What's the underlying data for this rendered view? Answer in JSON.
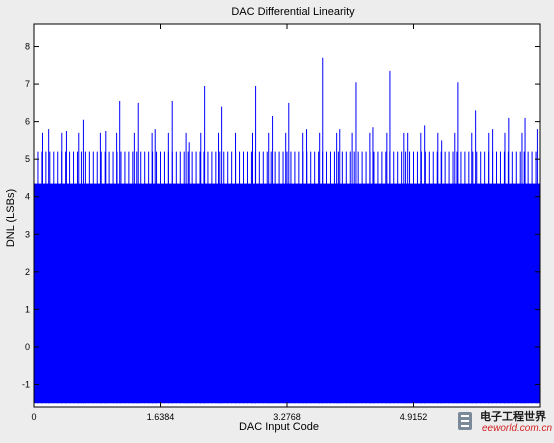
{
  "chart_data": {
    "type": "bar",
    "title": "DAC Differential Linearity",
    "xlabel": "DAC Input Code",
    "ylabel": "DNL (LSBs)",
    "xlim": [
      0,
      65536
    ],
    "ylim": [
      -1.6,
      8.6
    ],
    "x_ticks": [
      {
        "value": 0,
        "label": "0"
      },
      {
        "value": 16384,
        "label": "1.6384"
      },
      {
        "value": 32768,
        "label": "3.2768"
      },
      {
        "value": 49152,
        "label": "4.9152"
      }
    ],
    "y_ticks": [
      {
        "value": -1,
        "label": "-1"
      },
      {
        "value": 0,
        "label": "0"
      },
      {
        "value": 1,
        "label": "1"
      },
      {
        "value": 2,
        "label": "2"
      },
      {
        "value": 3,
        "label": "3"
      },
      {
        "value": 4,
        "label": "4"
      },
      {
        "value": 5,
        "label": "5"
      },
      {
        "value": 6,
        "label": "6"
      },
      {
        "value": 7,
        "label": "7"
      },
      {
        "value": 8,
        "label": "8"
      }
    ],
    "baseline": -1.5,
    "solid_level": 4.35,
    "dense_level": 5.2,
    "dense_spike_spacing": 512,
    "series": [
      {
        "name": "",
        "color": "#0000ff",
        "spikes": [
          {
            "x": 1100,
            "y": 5.7
          },
          {
            "x": 1900,
            "y": 5.8
          },
          {
            "x": 3600,
            "y": 5.7
          },
          {
            "x": 4200,
            "y": 5.75
          },
          {
            "x": 5800,
            "y": 5.7
          },
          {
            "x": 6400,
            "y": 6.05
          },
          {
            "x": 8600,
            "y": 5.7
          },
          {
            "x": 9300,
            "y": 5.75
          },
          {
            "x": 10700,
            "y": 5.7
          },
          {
            "x": 11100,
            "y": 6.55
          },
          {
            "x": 13000,
            "y": 5.7
          },
          {
            "x": 13500,
            "y": 6.5
          },
          {
            "x": 15300,
            "y": 5.7
          },
          {
            "x": 15700,
            "y": 5.8
          },
          {
            "x": 17400,
            "y": 5.7
          },
          {
            "x": 17900,
            "y": 6.55
          },
          {
            "x": 19700,
            "y": 5.7
          },
          {
            "x": 20100,
            "y": 5.45
          },
          {
            "x": 21600,
            "y": 5.7
          },
          {
            "x": 22100,
            "y": 6.95
          },
          {
            "x": 23900,
            "y": 5.7
          },
          {
            "x": 24300,
            "y": 6.4
          },
          {
            "x": 26100,
            "y": 5.7
          },
          {
            "x": 28300,
            "y": 5.7
          },
          {
            "x": 28700,
            "y": 6.95
          },
          {
            "x": 30400,
            "y": 5.7
          },
          {
            "x": 30900,
            "y": 6.15
          },
          {
            "x": 32600,
            "y": 5.7
          },
          {
            "x": 33000,
            "y": 6.5
          },
          {
            "x": 34800,
            "y": 5.7
          },
          {
            "x": 35300,
            "y": 5.8
          },
          {
            "x": 37000,
            "y": 5.7
          },
          {
            "x": 37400,
            "y": 7.7
          },
          {
            "x": 39200,
            "y": 5.7
          },
          {
            "x": 39600,
            "y": 5.8
          },
          {
            "x": 41200,
            "y": 5.7
          },
          {
            "x": 41700,
            "y": 7.05
          },
          {
            "x": 43500,
            "y": 5.7
          },
          {
            "x": 43900,
            "y": 5.85
          },
          {
            "x": 45700,
            "y": 5.7
          },
          {
            "x": 46100,
            "y": 7.35
          },
          {
            "x": 47900,
            "y": 5.7
          },
          {
            "x": 48400,
            "y": 5.7
          },
          {
            "x": 50100,
            "y": 5.7
          },
          {
            "x": 50600,
            "y": 5.9
          },
          {
            "x": 52300,
            "y": 5.7
          },
          {
            "x": 52800,
            "y": 5.5
          },
          {
            "x": 54500,
            "y": 5.7
          },
          {
            "x": 54900,
            "y": 7.05
          },
          {
            "x": 56700,
            "y": 5.7
          },
          {
            "x": 57200,
            "y": 6.3
          },
          {
            "x": 58900,
            "y": 5.7
          },
          {
            "x": 59400,
            "y": 5.8
          },
          {
            "x": 61000,
            "y": 5.7
          },
          {
            "x": 61500,
            "y": 6.1
          },
          {
            "x": 63200,
            "y": 5.7
          },
          {
            "x": 63600,
            "y": 6.1
          },
          {
            "x": 65200,
            "y": 5.8
          }
        ]
      }
    ],
    "grid": false,
    "legend": "none"
  },
  "watermark": {
    "brand_cn": "电子工程世界",
    "url": "eeworld.com.cn"
  }
}
